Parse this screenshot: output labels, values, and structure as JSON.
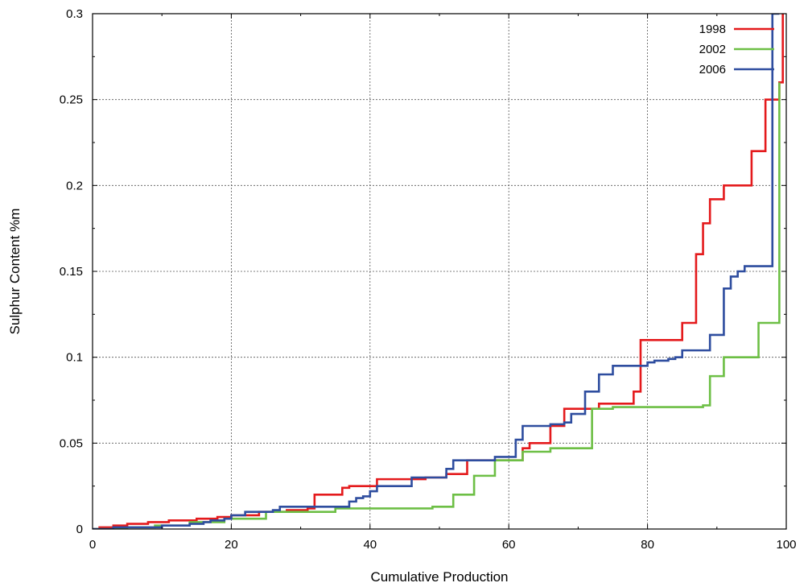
{
  "chart_data": {
    "type": "line",
    "title": "",
    "xlabel": "Cumulative Production",
    "ylabel": "Sulphur Content %m",
    "xlim": [
      0,
      100
    ],
    "ylim": [
      0,
      0.3
    ],
    "xticks": [
      0,
      20,
      40,
      60,
      80,
      100
    ],
    "xtick_labels": [
      "0",
      "20",
      "40",
      "60",
      "80",
      "100"
    ],
    "yticks": [
      0,
      0.05,
      0.1,
      0.15,
      0.2,
      0.25,
      0.3
    ],
    "ytick_labels": [
      "0",
      "0.05",
      "0.1",
      "0.15",
      "0.2",
      "0.25",
      "0.3"
    ],
    "grid": true,
    "legend_position": "top-right",
    "step": true,
    "series": [
      {
        "name": "1998",
        "color": "#e41a1c",
        "x": [
          0,
          1,
          3,
          5,
          8,
          11,
          15,
          18,
          20,
          24,
          28,
          31,
          32,
          36,
          37,
          41,
          48,
          51,
          54,
          62,
          63,
          66,
          68,
          70,
          73,
          78,
          79,
          85,
          87,
          88,
          89,
          91,
          95,
          96,
          97,
          99,
          99.5
        ],
        "y": [
          0,
          0.001,
          0.002,
          0.003,
          0.004,
          0.005,
          0.006,
          0.007,
          0.008,
          0.01,
          0.011,
          0.012,
          0.02,
          0.024,
          0.025,
          0.029,
          0.03,
          0.032,
          0.04,
          0.047,
          0.05,
          0.06,
          0.07,
          0.07,
          0.073,
          0.08,
          0.11,
          0.12,
          0.16,
          0.178,
          0.192,
          0.2,
          0.22,
          0.22,
          0.25,
          0.26,
          0.3
        ]
      },
      {
        "name": "2002",
        "color": "#6dbf45",
        "x": [
          0,
          5,
          9,
          14,
          19,
          25,
          35,
          49,
          52,
          55,
          58,
          62,
          66,
          72,
          75,
          88,
          89,
          91,
          96,
          99
        ],
        "y": [
          0,
          0.001,
          0.002,
          0.004,
          0.006,
          0.01,
          0.012,
          0.013,
          0.02,
          0.031,
          0.04,
          0.045,
          0.047,
          0.07,
          0.071,
          0.072,
          0.089,
          0.1,
          0.12,
          0.26
        ]
      },
      {
        "name": "2006",
        "color": "#2e4d9f",
        "x": [
          0,
          3,
          10,
          14,
          16,
          17,
          19,
          20,
          22,
          26,
          27,
          37,
          38,
          39,
          40,
          41,
          46,
          51,
          52,
          58,
          61,
          62,
          66,
          68,
          69,
          71,
          73,
          75,
          80,
          81,
          82,
          83,
          84,
          85,
          89,
          91,
          92,
          93,
          94,
          98,
          99
        ],
        "y": [
          0,
          0.001,
          0.002,
          0.003,
          0.004,
          0.005,
          0.006,
          0.008,
          0.01,
          0.011,
          0.013,
          0.016,
          0.018,
          0.019,
          0.022,
          0.025,
          0.03,
          0.035,
          0.04,
          0.042,
          0.052,
          0.06,
          0.061,
          0.062,
          0.067,
          0.08,
          0.09,
          0.095,
          0.097,
          0.098,
          0.098,
          0.099,
          0.1,
          0.104,
          0.113,
          0.14,
          0.147,
          0.15,
          0.153,
          0.3,
          0.3
        ]
      }
    ]
  }
}
